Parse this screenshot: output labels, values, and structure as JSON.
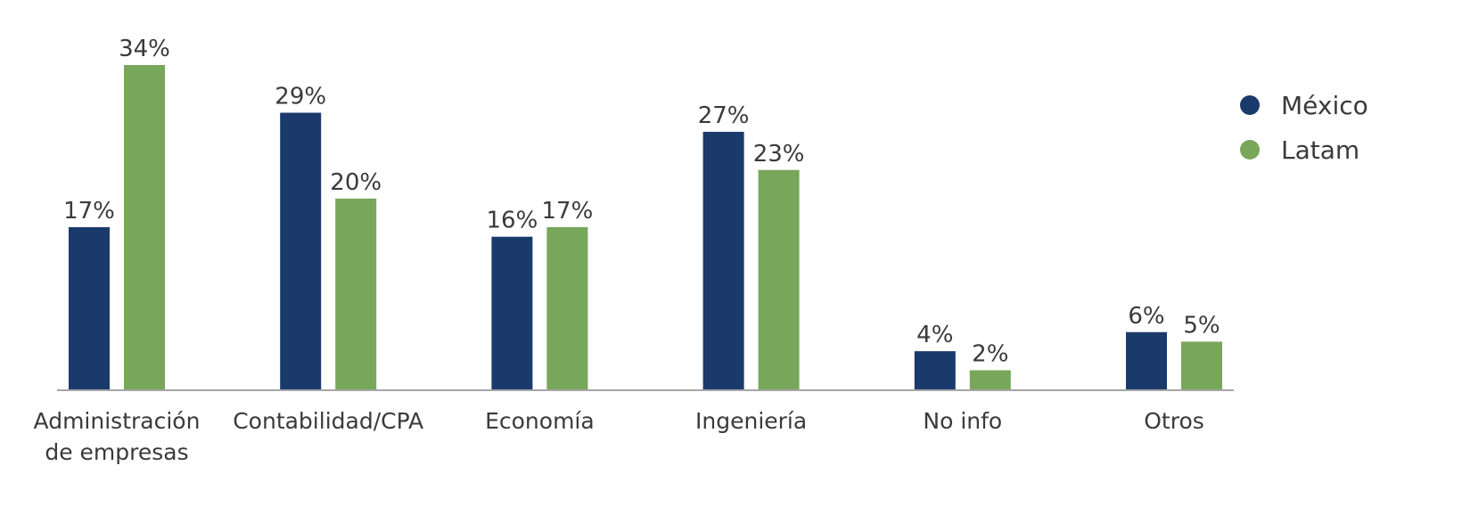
{
  "chart_data": {
    "type": "bar",
    "title": "",
    "xlabel": "",
    "ylabel": "",
    "ylim": [
      0,
      34
    ],
    "grid": false,
    "legend_position": "top-right",
    "value_suffix": "%",
    "categories": [
      [
        "Administración",
        "de empresas"
      ],
      [
        "Contabilidad/CPA"
      ],
      [
        "Economía"
      ],
      [
        "Ingeniería"
      ],
      [
        "No info"
      ],
      [
        "Otros"
      ]
    ],
    "series": [
      {
        "name": "México",
        "color": "#1a3a6b",
        "values": [
          17,
          29,
          16,
          27,
          4,
          6
        ]
      },
      {
        "name": "Latam",
        "color": "#78a65a",
        "values": [
          34,
          20,
          17,
          23,
          2,
          5
        ]
      }
    ]
  }
}
